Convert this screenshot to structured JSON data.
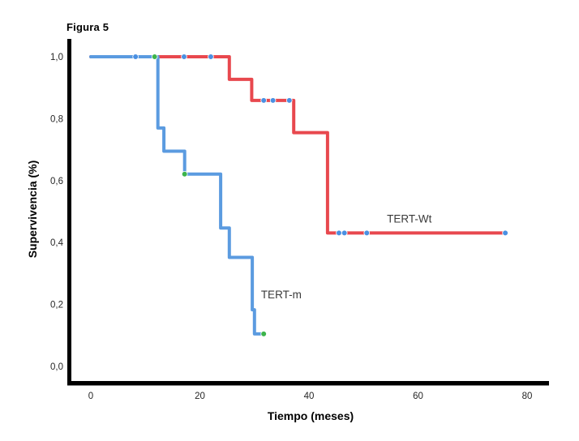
{
  "chart_data": {
    "type": "line",
    "subtype": "kaplan_meier_step",
    "title": "Figura 5",
    "xlabel": "Tiempo (meses)",
    "ylabel": "Supervivencia (%)",
    "xlim": [
      0,
      80
    ],
    "ylim": [
      0.0,
      1.0
    ],
    "grid": false,
    "legend": "inline-labels",
    "x_ticks": [
      {
        "value": 0,
        "label": "0"
      },
      {
        "value": 20,
        "label": "20"
      },
      {
        "value": 40,
        "label": "40"
      },
      {
        "value": 60,
        "label": "60"
      },
      {
        "value": 80,
        "label": "80"
      }
    ],
    "y_ticks": [
      {
        "value": 0.0,
        "label": "0,0"
      },
      {
        "value": 0.2,
        "label": "0,2"
      },
      {
        "value": 0.4,
        "label": "0,4"
      },
      {
        "value": 0.6,
        "label": "0,6"
      },
      {
        "value": 0.8,
        "label": "0,8"
      },
      {
        "value": 1.0,
        "label": "1,0"
      }
    ],
    "axis_color": "#000000",
    "tick_label_color": "#262626",
    "series": [
      {
        "name": "TERT-Wt",
        "line_color": "#e8484e",
        "censor_color": "#4a90e2",
        "step_points": [
          [
            0,
            1.0
          ],
          [
            25.4,
            1.0
          ],
          [
            25.4,
            0.927
          ],
          [
            29.5,
            0.927
          ],
          [
            29.5,
            0.859
          ],
          [
            37.2,
            0.859
          ],
          [
            37.2,
            0.755
          ],
          [
            43.4,
            0.755
          ],
          [
            43.4,
            0.431
          ],
          [
            76.0,
            0.431
          ]
        ],
        "censored": [
          [
            8.2,
            1.0
          ],
          [
            17.1,
            1.0
          ],
          [
            22.0,
            1.0
          ],
          [
            31.7,
            0.859
          ],
          [
            33.4,
            0.859
          ],
          [
            36.4,
            0.859
          ],
          [
            45.5,
            0.431
          ],
          [
            46.5,
            0.431
          ],
          [
            50.6,
            0.431
          ],
          [
            76.0,
            0.431
          ]
        ],
        "label": {
          "text": "TERT-Wt",
          "x": 54.3,
          "y": 0.465
        }
      },
      {
        "name": "TERT-m",
        "line_color": "#5b9be0",
        "censor_color": "#3cb44b",
        "step_points": [
          [
            0,
            1.0
          ],
          [
            12.3,
            1.0
          ],
          [
            12.3,
            0.77
          ],
          [
            13.4,
            0.77
          ],
          [
            13.4,
            0.695
          ],
          [
            17.2,
            0.695
          ],
          [
            17.2,
            0.621
          ],
          [
            23.8,
            0.621
          ],
          [
            23.8,
            0.447
          ],
          [
            25.4,
            0.447
          ],
          [
            25.4,
            0.352
          ],
          [
            29.6,
            0.352
          ],
          [
            29.6,
            0.183
          ],
          [
            30.0,
            0.183
          ],
          [
            30.0,
            0.105
          ],
          [
            31.7,
            0.105
          ]
        ],
        "censored": [
          [
            11.7,
            1.0
          ],
          [
            17.2,
            0.621
          ],
          [
            31.7,
            0.105
          ]
        ],
        "label": {
          "text": "TERT-m",
          "x": 31.2,
          "y": 0.22
        }
      }
    ],
    "series_label_color": "#3a3a3a"
  }
}
